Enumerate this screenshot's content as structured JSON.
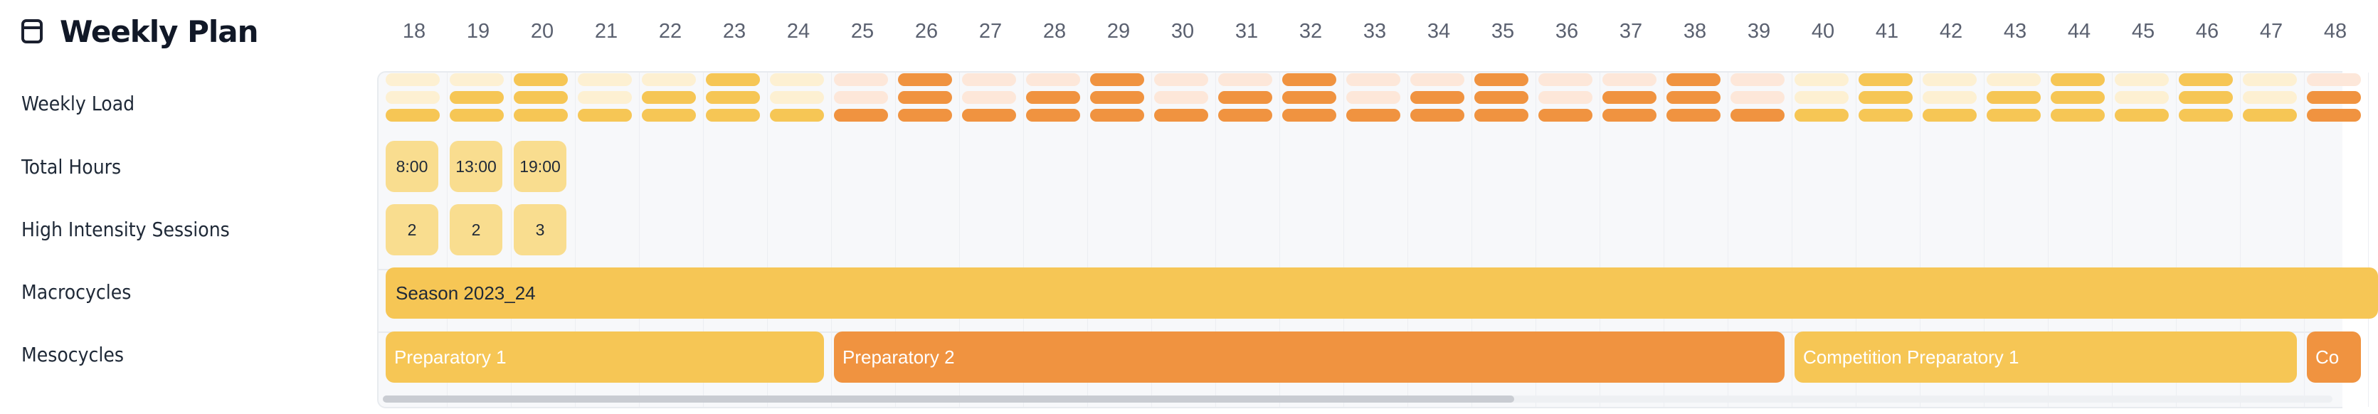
{
  "header": {
    "title": "Weekly Plan",
    "icon": "calendar-icon"
  },
  "weeks": [
    "18",
    "19",
    "20",
    "21",
    "22",
    "23",
    "24",
    "25",
    "26",
    "27",
    "28",
    "29",
    "30",
    "31",
    "32",
    "33",
    "34",
    "35",
    "36",
    "37",
    "38",
    "39",
    "40",
    "41",
    "42",
    "43",
    "44",
    "45",
    "46",
    "47",
    "48"
  ],
  "row_labels": {
    "weekly_load": "Weekly Load",
    "total_hours": "Total Hours",
    "high_intensity": "High Intensity Sessions",
    "macrocycles": "Macrocycles",
    "mesocycles": "Mesocycles"
  },
  "load_levels": {
    "description_scale": "number of filled load pills (0-3) per week; 1 = bottom pill",
    "values": [
      1,
      2,
      3,
      1,
      2,
      3,
      1,
      1,
      3,
      1,
      2,
      3,
      1,
      2,
      3,
      1,
      2,
      3,
      1,
      2,
      3,
      1,
      1,
      3,
      1,
      2,
      3,
      1,
      3,
      1,
      2
    ],
    "meso_color_index": [
      0,
      0,
      0,
      0,
      0,
      0,
      0,
      1,
      1,
      1,
      1,
      1,
      1,
      1,
      1,
      1,
      1,
      1,
      1,
      1,
      1,
      1,
      2,
      2,
      2,
      2,
      2,
      2,
      2,
      2,
      3
    ]
  },
  "total_hours": [
    "8:00",
    "13:00",
    "19:00"
  ],
  "high_intensity_sessions": [
    "2",
    "2",
    "3"
  ],
  "macrocycles": [
    {
      "label": "Season 2023_24"
    }
  ],
  "mesocycles": [
    {
      "label": "Preparatory 1",
      "start_week_index": 0,
      "end_week_index": 6,
      "color": "#f6c655"
    },
    {
      "label": "Preparatory 2",
      "start_week_index": 7,
      "end_week_index": 21,
      "color": "#f09340"
    },
    {
      "label": "Competition Preparatory 1",
      "start_week_index": 22,
      "end_week_index": 29,
      "color": "#f6c655"
    },
    {
      "label": "Co",
      "start_week_index": 30,
      "end_week_index": 30,
      "color": "#f09340"
    }
  ],
  "colors": {
    "yellow": "#f6c655",
    "yellow_light": "#fdf0d2",
    "orange": "#f09340",
    "orange_light": "#fde7d9",
    "cell": "#f9dd8f"
  }
}
